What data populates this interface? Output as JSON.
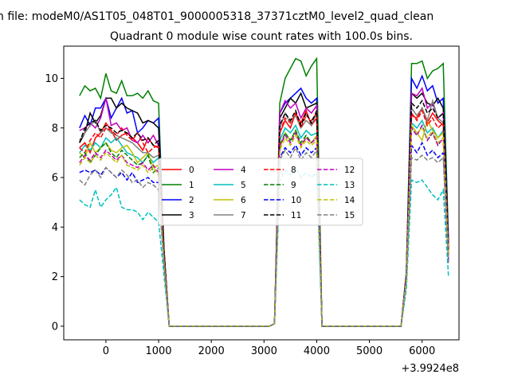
{
  "figure": {
    "suptitle": "n file: modeM0/AS1T05_048T01_9000005318_37371cztM0_level2_quad_clean",
    "title": "Quadrant 0 module wise count rates with 100.0s bins.",
    "offset_text": "+3.9924e8"
  },
  "chart_data": {
    "type": "line",
    "title": "Quadrant 0 module wise count rates with 100.0s bins.",
    "xlabel": "",
    "ylabel": "",
    "xlim": [
      -800,
      6700
    ],
    "ylim": [
      -0.55,
      11.3
    ],
    "x_offset": 399240000,
    "xticks": [
      0,
      1000,
      2000,
      3000,
      4000,
      5000,
      6000
    ],
    "yticks": [
      0,
      2,
      4,
      6,
      8,
      10
    ],
    "grid": false,
    "legend": {
      "placement": "center",
      "ncol": 4
    },
    "x": [
      -500,
      -400,
      -300,
      -200,
      -100,
      0,
      100,
      200,
      300,
      400,
      500,
      600,
      700,
      800,
      900,
      1000,
      1100,
      1200,
      1300,
      1400,
      1500,
      1600,
      1700,
      1800,
      1900,
      2000,
      2100,
      2200,
      2300,
      2400,
      2500,
      2600,
      2700,
      2800,
      2900,
      3000,
      3100,
      3200,
      3300,
      3400,
      3500,
      3600,
      3700,
      3800,
      3900,
      4000,
      4100,
      4200,
      4300,
      4400,
      4500,
      4600,
      4700,
      4800,
      4900,
      5000,
      5100,
      5200,
      5300,
      5400,
      5500,
      5600,
      5700,
      5800,
      5900,
      6000,
      6100,
      6200,
      6300,
      6400,
      6500
    ],
    "series": [
      {
        "name": "0",
        "color": "#ff0000",
        "dash": "solid",
        "values": [
          7.2,
          7.4,
          7.0,
          7.6,
          7.8,
          8.2,
          7.9,
          7.5,
          7.7,
          7.8,
          7.6,
          7.4,
          7.1,
          7.6,
          7.3,
          7.2,
          3.0,
          0,
          0,
          0,
          0,
          0,
          0,
          0,
          0,
          0,
          0,
          0,
          0,
          0,
          0,
          0,
          0,
          0,
          0,
          0,
          0,
          0.1,
          7.8,
          8.3,
          8.0,
          8.6,
          8.2,
          8.7,
          8.1,
          8.4,
          0,
          0,
          0,
          0,
          0,
          0,
          0,
          0,
          0,
          0,
          0,
          0,
          0,
          0,
          0,
          0,
          2.0,
          8.5,
          8.4,
          8.8,
          8.2,
          8.6,
          8.3,
          8.1,
          3.0
        ]
      },
      {
        "name": "1",
        "color": "#008000",
        "dash": "solid",
        "values": [
          9.3,
          9.7,
          9.5,
          9.6,
          9.2,
          10.2,
          9.5,
          9.4,
          9.9,
          9.3,
          9.3,
          9.4,
          9.2,
          9.5,
          9.1,
          9.0,
          3.2,
          0,
          0,
          0,
          0,
          0,
          0,
          0,
          0,
          0,
          0,
          0,
          0,
          0,
          0,
          0,
          0,
          0,
          0,
          0,
          0,
          0.1,
          9.0,
          10.0,
          10.4,
          10.8,
          10.7,
          10.1,
          10.5,
          10.8,
          0,
          0,
          0,
          0,
          0,
          0,
          0,
          0,
          0,
          0,
          0,
          0,
          0,
          0,
          0,
          0,
          2.2,
          10.6,
          10.6,
          10.7,
          10.0,
          10.3,
          10.4,
          10.6,
          3.5
        ]
      },
      {
        "name": "2",
        "color": "#0000ff",
        "dash": "solid",
        "values": [
          8.0,
          8.5,
          8.1,
          8.8,
          8.8,
          9.2,
          8.4,
          8.8,
          9.2,
          8.6,
          8.7,
          7.8,
          8.0,
          8.3,
          8.2,
          8.4,
          3.1,
          0,
          0,
          0,
          0,
          0,
          0,
          0,
          0,
          0,
          0,
          0,
          0,
          0,
          0,
          0,
          0,
          0,
          0,
          0,
          0,
          0.1,
          8.6,
          9.0,
          9.2,
          9.4,
          9.6,
          9.2,
          9.0,
          9.2,
          0,
          0,
          0,
          0,
          0,
          0,
          0,
          0,
          0,
          0,
          0,
          0,
          0,
          0,
          0,
          0,
          2.1,
          10.0,
          9.6,
          10.1,
          9.5,
          9.7,
          9.0,
          9.2,
          3.4
        ]
      },
      {
        "name": "3",
        "color": "#000000",
        "dash": "solid",
        "values": [
          7.4,
          7.8,
          8.6,
          8.2,
          8.5,
          9.2,
          9.2,
          8.8,
          9.0,
          8.8,
          8.7,
          8.6,
          8.2,
          8.3,
          8.2,
          8.0,
          3.1,
          0,
          0,
          0,
          0,
          0,
          0,
          0,
          0,
          0,
          0,
          0,
          0,
          0,
          0,
          0,
          0,
          0,
          0,
          0,
          0,
          0.1,
          8.4,
          8.8,
          9.2,
          9.0,
          9.4,
          8.8,
          8.9,
          9.0,
          0,
          0,
          0,
          0,
          0,
          0,
          0,
          0,
          0,
          0,
          0,
          0,
          0,
          0,
          0,
          0,
          2.1,
          9.4,
          9.2,
          9.4,
          9.0,
          8.9,
          9.2,
          8.8,
          3.2
        ]
      },
      {
        "name": "4",
        "color": "#bf00bf",
        "dash": "solid",
        "values": [
          7.9,
          8.0,
          8.2,
          8.0,
          8.4,
          9.2,
          8.1,
          8.2,
          7.9,
          8.0,
          7.5,
          7.4,
          7.7,
          7.4,
          7.7,
          7.3,
          3.0,
          0,
          0,
          0,
          0,
          0,
          0,
          0,
          0,
          0,
          0,
          0,
          0,
          0,
          0,
          0,
          0,
          0,
          0,
          0,
          0,
          0.1,
          8.6,
          9.1,
          8.8,
          9.0,
          8.4,
          8.8,
          8.6,
          8.9,
          0,
          0,
          0,
          0,
          0,
          0,
          0,
          0,
          0,
          0,
          0,
          0,
          0,
          0,
          0,
          0,
          2.1,
          9.4,
          9.3,
          9.6,
          8.8,
          9.0,
          8.4,
          8.6,
          3.2
        ]
      },
      {
        "name": "5",
        "color": "#00bfbf",
        "dash": "solid",
        "values": [
          7.0,
          7.3,
          7.1,
          7.4,
          7.2,
          7.6,
          7.4,
          7.6,
          7.3,
          7.0,
          6.9,
          6.8,
          6.6,
          6.9,
          6.6,
          6.8,
          2.8,
          0,
          0,
          0,
          0,
          0,
          0,
          0,
          0,
          0,
          0,
          0,
          0,
          0,
          0,
          0,
          0,
          0,
          0,
          0,
          0,
          0.1,
          7.5,
          8.0,
          7.8,
          8.1,
          7.6,
          7.9,
          7.7,
          7.8,
          0,
          0,
          0,
          0,
          0,
          0,
          0,
          0,
          0,
          0,
          0,
          0,
          0,
          0,
          0,
          0,
          1.9,
          8.2,
          8.0,
          8.3,
          7.8,
          8.0,
          7.6,
          7.9,
          2.8
        ]
      },
      {
        "name": "6",
        "color": "#bfbf00",
        "dash": "solid",
        "values": [
          7.0,
          6.8,
          7.4,
          7.0,
          7.2,
          7.4,
          7.1,
          7.0,
          7.2,
          7.3,
          7.0,
          6.6,
          6.8,
          7.0,
          6.4,
          6.5,
          2.8,
          0,
          0,
          0,
          0,
          0,
          0,
          0,
          0,
          0,
          0,
          0,
          0,
          0,
          0,
          0,
          0,
          0,
          0,
          0,
          0,
          0.1,
          7.2,
          7.8,
          7.5,
          7.9,
          7.3,
          7.6,
          7.4,
          7.7,
          0,
          0,
          0,
          0,
          0,
          0,
          0,
          0,
          0,
          0,
          0,
          0,
          0,
          0,
          0,
          0,
          1.9,
          8.1,
          7.8,
          7.5,
          8.3,
          7.9,
          7.6,
          7.8,
          2.8
        ]
      },
      {
        "name": "7",
        "color": "#808080",
        "dash": "solid",
        "values": [
          7.5,
          7.8,
          8.1,
          8.3,
          7.8,
          8.0,
          7.8,
          7.7,
          7.6,
          7.5,
          7.4,
          7.2,
          7.0,
          7.0,
          6.8,
          6.9,
          2.9,
          0,
          0,
          0,
          0,
          0,
          0,
          0,
          0,
          0,
          0,
          0,
          0,
          0,
          0,
          0,
          0,
          0,
          0,
          0,
          0,
          0.1,
          8.0,
          8.6,
          8.2,
          8.5,
          8.0,
          8.3,
          8.1,
          8.6,
          0,
          0,
          0,
          0,
          0,
          0,
          0,
          0,
          0,
          0,
          0,
          0,
          0,
          0,
          0,
          0,
          2.0,
          8.8,
          8.5,
          8.8,
          8.3,
          9.1,
          8.4,
          8.2,
          3.0
        ]
      },
      {
        "name": "8",
        "color": "#ff0000",
        "dash": "dashed",
        "values": [
          7.2,
          7.0,
          7.5,
          7.8,
          7.6,
          8.0,
          7.9,
          7.7,
          8.0,
          7.7,
          7.5,
          7.8,
          7.4,
          7.0,
          7.2,
          7.3,
          3.0,
          0,
          0,
          0,
          0,
          0,
          0,
          0,
          0,
          0,
          0,
          0,
          0,
          0,
          0,
          0,
          0,
          0,
          0,
          0,
          0,
          0.1,
          7.8,
          8.4,
          8.2,
          8.6,
          8.0,
          8.5,
          8.3,
          8.6,
          0,
          0,
          0,
          0,
          0,
          0,
          0,
          0,
          0,
          0,
          0,
          0,
          0,
          0,
          0,
          0,
          2.0,
          8.6,
          8.3,
          8.7,
          8.1,
          8.4,
          8.0,
          8.2,
          3.0
        ]
      },
      {
        "name": "9",
        "color": "#008000",
        "dash": "dashed",
        "values": [
          6.8,
          7.0,
          6.6,
          6.9,
          7.2,
          7.4,
          7.0,
          6.8,
          7.1,
          6.9,
          6.7,
          6.5,
          6.6,
          6.9,
          6.2,
          6.4,
          2.8,
          0,
          0,
          0,
          0,
          0,
          0,
          0,
          0,
          0,
          0,
          0,
          0,
          0,
          0,
          0,
          0,
          0,
          0,
          0,
          0,
          0.1,
          7.3,
          7.8,
          7.5,
          7.9,
          7.4,
          7.7,
          7.4,
          7.6,
          0,
          0,
          0,
          0,
          0,
          0,
          0,
          0,
          0,
          0,
          0,
          0,
          0,
          0,
          0,
          0,
          1.9,
          8.0,
          7.7,
          8.1,
          7.5,
          7.8,
          7.3,
          7.6,
          2.8
        ]
      },
      {
        "name": "10",
        "color": "#0000ff",
        "dash": "dashed",
        "values": [
          6.2,
          6.3,
          6.2,
          6.3,
          6.1,
          6.4,
          6.2,
          6.0,
          6.2,
          5.9,
          6.2,
          5.8,
          5.9,
          6.0,
          5.8,
          5.8,
          2.6,
          0,
          0,
          0,
          0,
          0,
          0,
          0,
          0,
          0,
          0,
          0,
          0,
          0,
          0,
          0,
          0,
          0,
          0,
          0,
          0,
          0.1,
          6.8,
          7.2,
          7.0,
          7.3,
          6.9,
          7.2,
          7.0,
          7.2,
          0,
          0,
          0,
          0,
          0,
          0,
          0,
          0,
          0,
          0,
          0,
          0,
          0,
          0,
          0,
          0,
          1.8,
          7.3,
          7.0,
          7.4,
          6.9,
          7.1,
          6.8,
          7.0,
          2.6
        ]
      },
      {
        "name": "11",
        "color": "#000000",
        "dash": "dashed",
        "values": [
          7.4,
          8.0,
          8.2,
          8.3,
          7.9,
          8.1,
          8.0,
          7.8,
          7.9,
          7.8,
          7.6,
          7.8,
          7.5,
          7.6,
          7.3,
          7.5,
          3.0,
          0,
          0,
          0,
          0,
          0,
          0,
          0,
          0,
          0,
          0,
          0,
          0,
          0,
          0,
          0,
          0,
          0,
          0,
          0,
          0,
          0.1,
          8.1,
          8.6,
          8.3,
          8.7,
          8.1,
          8.6,
          8.2,
          8.7,
          0,
          0,
          0,
          0,
          0,
          0,
          0,
          0,
          0,
          0,
          0,
          0,
          0,
          0,
          0,
          0,
          2.0,
          9.0,
          8.8,
          9.1,
          8.6,
          8.8,
          8.4,
          8.6,
          3.1
        ]
      },
      {
        "name": "12",
        "color": "#bf00bf",
        "dash": "dashed",
        "values": [
          6.6,
          6.9,
          6.7,
          7.0,
          6.8,
          7.1,
          6.9,
          6.7,
          6.9,
          6.6,
          6.5,
          6.4,
          6.6,
          6.3,
          6.5,
          6.2,
          2.7,
          0,
          0,
          0,
          0,
          0,
          0,
          0,
          0,
          0,
          0,
          0,
          0,
          0,
          0,
          0,
          0,
          0,
          0,
          0,
          0,
          0.1,
          7.3,
          7.7,
          7.4,
          7.8,
          7.3,
          7.6,
          7.4,
          7.6,
          0,
          0,
          0,
          0,
          0,
          0,
          0,
          0,
          0,
          0,
          0,
          0,
          0,
          0,
          0,
          0,
          1.9,
          8.0,
          7.7,
          8.1,
          7.5,
          7.8,
          7.3,
          7.6,
          2.8
        ]
      },
      {
        "name": "13",
        "color": "#00bfbf",
        "dash": "dashed",
        "values": [
          5.1,
          4.9,
          4.8,
          5.5,
          4.8,
          5.1,
          5.3,
          5.6,
          4.8,
          4.7,
          4.7,
          4.6,
          4.3,
          4.6,
          4.4,
          4.2,
          2.1,
          0,
          0,
          0,
          0,
          0,
          0,
          0,
          0,
          0,
          0,
          0,
          0,
          0,
          0,
          0,
          0,
          0,
          0,
          0,
          0,
          0.1,
          5.9,
          6.3,
          6.1,
          6.4,
          6.0,
          6.2,
          6.0,
          6.2,
          0,
          0,
          0,
          0,
          0,
          0,
          0,
          0,
          0,
          0,
          0,
          0,
          0,
          0,
          0,
          0,
          1.5,
          5.9,
          5.8,
          5.9,
          5.6,
          5.3,
          5.1,
          5.5,
          2.0
        ]
      },
      {
        "name": "14",
        "color": "#bfbf00",
        "dash": "dashed",
        "values": [
          6.5,
          6.8,
          6.6,
          6.9,
          6.7,
          7.0,
          6.8,
          6.6,
          6.9,
          6.5,
          6.4,
          6.3,
          6.5,
          6.2,
          6.4,
          6.1,
          2.7,
          0,
          0,
          0,
          0,
          0,
          0,
          0,
          0,
          0,
          0,
          0,
          0,
          0,
          0,
          0,
          0,
          0,
          0,
          0,
          0,
          0.1,
          7.1,
          7.6,
          7.3,
          7.7,
          7.2,
          7.5,
          7.3,
          7.5,
          0,
          0,
          0,
          0,
          0,
          0,
          0,
          0,
          0,
          0,
          0,
          0,
          0,
          0,
          0,
          0,
          1.9,
          8.1,
          7.8,
          8.0,
          7.6,
          7.9,
          7.4,
          7.6,
          2.8
        ]
      },
      {
        "name": "15",
        "color": "#808080",
        "dash": "dashed",
        "values": [
          5.9,
          5.7,
          6.1,
          6.3,
          6.0,
          6.4,
          6.2,
          6.0,
          6.3,
          6.1,
          5.8,
          5.9,
          5.6,
          5.8,
          5.7,
          5.5,
          2.5,
          0,
          0,
          0,
          0,
          0,
          0,
          0,
          0,
          0,
          0,
          0,
          0,
          0,
          0,
          0,
          0,
          0,
          0,
          0,
          0,
          0.1,
          6.7,
          7.1,
          6.8,
          7.2,
          6.7,
          7.0,
          6.8,
          7.1,
          0,
          0,
          0,
          0,
          0,
          0,
          0,
          0,
          0,
          0,
          0,
          0,
          0,
          0,
          0,
          0,
          1.8,
          6.8,
          6.7,
          6.9,
          6.7,
          6.8,
          6.6,
          6.8,
          2.5
        ]
      }
    ]
  }
}
